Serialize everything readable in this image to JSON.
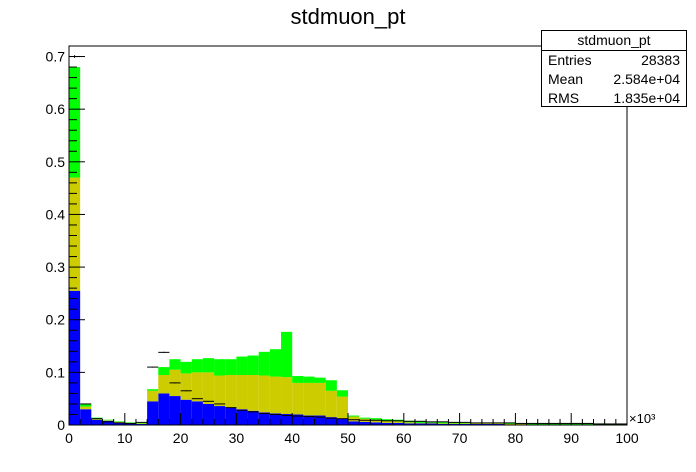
{
  "chart_data": {
    "type": "bar",
    "title": "stdmuon_pt",
    "xlabel": "",
    "ylabel": "",
    "xlim": [
      0,
      100
    ],
    "ylim": [
      0,
      0.72
    ],
    "x_multiplier_label": "×10³",
    "x_ticks": [
      0,
      10,
      20,
      30,
      40,
      50,
      60,
      70,
      80,
      90,
      100
    ],
    "x_tick_labels": [
      "0",
      "10",
      "20",
      "30",
      "40",
      "50",
      "60",
      "70",
      "80",
      "90",
      "100"
    ],
    "y_ticks": [
      0,
      0.1,
      0.2,
      0.3,
      0.4,
      0.5,
      0.6,
      0.7
    ],
    "y_tick_labels": [
      "0",
      "0.1",
      "0.2",
      "0.3",
      "0.4",
      "0.5",
      "0.6",
      "0.7"
    ],
    "bin_width": 2,
    "bin_low_edges": [
      0,
      2,
      4,
      6,
      8,
      10,
      12,
      14,
      16,
      18,
      20,
      22,
      24,
      26,
      28,
      30,
      32,
      34,
      36,
      38,
      40,
      42,
      44,
      46,
      48,
      50,
      52,
      54,
      56,
      58,
      60,
      62,
      64,
      66,
      68,
      70,
      72,
      74,
      76,
      78,
      80,
      82,
      84,
      86,
      88,
      90,
      92,
      94,
      96,
      98
    ],
    "stacked": true,
    "grid": false,
    "series": [
      {
        "color": "#0000ff",
        "values": [
          0.255,
          0.03,
          0.01,
          0.008,
          0.005,
          0.003,
          0.002,
          0.045,
          0.06,
          0.055,
          0.048,
          0.045,
          0.04,
          0.036,
          0.033,
          0.03,
          0.027,
          0.024,
          0.022,
          0.021,
          0.02,
          0.018,
          0.018,
          0.015,
          0.012,
          0.007,
          0.006,
          0.005,
          0.004,
          0.004,
          0.003,
          0.003,
          0.003,
          0.002,
          0.002,
          0.002,
          0.002,
          0.002,
          0.002,
          0.001,
          0.001,
          0.001,
          0.001,
          0.001,
          0.001,
          0.001,
          0.001,
          0.001,
          0.001,
          0.001
        ]
      },
      {
        "color": "#cccc00",
        "values": [
          0.215,
          0.005,
          0.002,
          0.001,
          0.001,
          0.001,
          0.001,
          0.02,
          0.035,
          0.05,
          0.05,
          0.055,
          0.06,
          0.058,
          0.062,
          0.065,
          0.068,
          0.07,
          0.07,
          0.07,
          0.06,
          0.062,
          0.062,
          0.05,
          0.042,
          0.009,
          0.006,
          0.005,
          0.004,
          0.003,
          0.002,
          0.001,
          0.001,
          0.001,
          0.001,
          0.001,
          0.001,
          0.001,
          0.001,
          0.001,
          0.001,
          0.0,
          0.0,
          0.0,
          0.0,
          0.0,
          0.0,
          0.0,
          0.0,
          0.0
        ]
      },
      {
        "color": "#00ff00",
        "values": [
          0.21,
          0.004,
          0.002,
          0.001,
          0.001,
          0.001,
          0.001,
          0.003,
          0.015,
          0.02,
          0.022,
          0.025,
          0.027,
          0.031,
          0.03,
          0.035,
          0.037,
          0.045,
          0.052,
          0.086,
          0.013,
          0.012,
          0.01,
          0.02,
          0.012,
          0.002,
          0.002,
          0.003,
          0.003,
          0.003,
          0.003,
          0.003,
          0.002,
          0.002,
          0.002,
          0.001,
          0.001,
          0.001,
          0.001,
          0.002,
          0.001,
          0.002,
          0.002,
          0.002,
          0.002,
          0.002,
          0.002,
          0.002,
          0.001,
          0.001
        ]
      }
    ],
    "overlay_points": {
      "color": "#000000",
      "x": [
        1,
        3,
        5,
        7,
        9,
        11,
        13,
        15,
        17,
        19,
        21,
        23,
        25,
        27,
        29,
        31,
        33,
        35,
        37,
        39,
        41,
        43,
        45,
        47,
        49,
        51,
        53,
        55,
        57,
        59,
        61,
        63,
        65,
        67,
        69,
        71,
        73,
        75,
        77,
        79,
        81,
        83,
        85,
        87,
        89,
        91,
        93,
        95,
        97,
        99
      ],
      "values": [
        0.7,
        0.04,
        0.012,
        0.006,
        0.004,
        0.003,
        0.005,
        0.11,
        0.138,
        0.08,
        0.065,
        0.05,
        0.045,
        0.04,
        0.033,
        0.028,
        0.025,
        0.022,
        0.02,
        0.018,
        0.017,
        0.016,
        0.015,
        0.013,
        0.012,
        0.01,
        0.009,
        0.009,
        0.008,
        0.008,
        0.007,
        0.007,
        0.006,
        0.006,
        0.005,
        0.005,
        0.004,
        0.004,
        0.004,
        0.004,
        0.003,
        0.003,
        0.003,
        0.003,
        0.003,
        0.003,
        0.003,
        0.002,
        0.002,
        0.002
      ]
    }
  },
  "stats_box": {
    "title": "stdmuon_pt",
    "rows": [
      {
        "label": "Entries",
        "value": "28383"
      },
      {
        "label": "Mean",
        "value": "2.584e+04"
      },
      {
        "label": "RMS",
        "value": "1.835e+04"
      }
    ]
  }
}
